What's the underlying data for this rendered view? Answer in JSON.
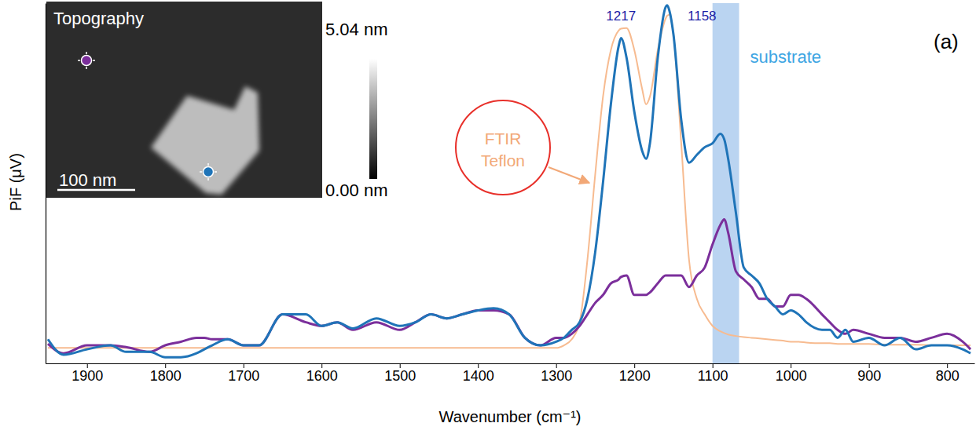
{
  "chart_data": {
    "type": "line",
    "x": [
      1950,
      1930,
      1900,
      1870,
      1850,
      1820,
      1800,
      1780,
      1760,
      1750,
      1740,
      1720,
      1700,
      1680,
      1650,
      1620,
      1600,
      1580,
      1560,
      1530,
      1500,
      1480,
      1460,
      1440,
      1420,
      1400,
      1380,
      1360,
      1340,
      1320,
      1300,
      1290,
      1280,
      1270,
      1260,
      1250,
      1240,
      1230,
      1220,
      1217,
      1210,
      1200,
      1190,
      1185,
      1180,
      1170,
      1160,
      1158,
      1155,
      1150,
      1140,
      1130,
      1120,
      1110,
      1100,
      1090,
      1085,
      1080,
      1070,
      1060,
      1050,
      1040,
      1030,
      1020,
      1010,
      1000,
      990,
      980,
      960,
      950,
      940,
      930,
      920,
      900,
      880,
      860,
      840,
      820,
      800,
      780,
      770
    ],
    "xlim": [
      1953,
      765
    ],
    "xticks": [
      1900,
      1800,
      1700,
      1600,
      1500,
      1400,
      1300,
      1200,
      1100,
      1000,
      900,
      800
    ],
    "ylim": [
      0,
      100
    ],
    "tick_labels": "x",
    "x_label": "Wavenumber (cm⁻¹)",
    "y_label": "PiF (μV)",
    "panel": "(a)",
    "series": [
      {
        "color": "#f7bb90",
        "line_style": "solid",
        "values": [
          4.3,
          4.3,
          4.3,
          4.3,
          4.3,
          4.3,
          4.3,
          4.3,
          4.3,
          4.3,
          4.3,
          4.3,
          4.3,
          4.3,
          4.3,
          4.3,
          4.3,
          4.3,
          4.3,
          4.3,
          4.3,
          4.3,
          4.3,
          4.3,
          4.3,
          4.3,
          4.3,
          4.3,
          4.3,
          4.3,
          4.3,
          5.0,
          6.7,
          11.4,
          28.7,
          52.5,
          74.1,
          87.0,
          92.4,
          92.9,
          93.1,
          87.0,
          76.2,
          71.9,
          74.1,
          87.0,
          95.7,
          96.5,
          96.8,
          91.4,
          61.1,
          28.7,
          17.9,
          13.6,
          10.4,
          8.9,
          8.4,
          8.0,
          7.6,
          7.3,
          7.1,
          6.9,
          6.7,
          6.5,
          6.3,
          6.0,
          6.0,
          5.8,
          5.6,
          5.6,
          5.4,
          5.4,
          5.4,
          5.4,
          5.2,
          5.2,
          5.2,
          5.0,
          5.0,
          5.0,
          5.0
        ]
      },
      {
        "color": "#7b2f9b",
        "line_style": "solid",
        "values": [
          5.4,
          2.8,
          5.0,
          5.0,
          4.5,
          3.2,
          5.0,
          6.0,
          7.1,
          7.1,
          6.7,
          6.7,
          5.0,
          5.0,
          13.6,
          11.4,
          10.4,
          11.4,
          9.3,
          11.4,
          9.3,
          11.4,
          13.6,
          12.5,
          13.6,
          14.7,
          14.7,
          13.6,
          7.1,
          5.0,
          7.1,
          7.1,
          8.2,
          10.4,
          13.6,
          16.8,
          19.0,
          22.2,
          23.3,
          24.0,
          24.4,
          19.0,
          19.0,
          19.0,
          19.7,
          22.2,
          24.4,
          24.4,
          24.4,
          24.4,
          24.4,
          21.2,
          24.4,
          26.6,
          33.0,
          38.4,
          40.0,
          36.3,
          25.5,
          23.3,
          21.2,
          17.9,
          17.9,
          15.8,
          15.8,
          19.0,
          19.0,
          17.9,
          13.6,
          11.4,
          9.3,
          8.2,
          9.3,
          8.2,
          7.1,
          7.1,
          6.0,
          7.1,
          8.2,
          6.0,
          3.9
        ]
      },
      {
        "color": "#1f74b8",
        "line_style": "solid",
        "values": [
          6.7,
          2.4,
          3.9,
          5.0,
          3.2,
          3.2,
          1.7,
          1.7,
          2.8,
          3.9,
          5.0,
          6.7,
          5.0,
          5.0,
          13.6,
          13.6,
          10.4,
          11.4,
          9.7,
          12.5,
          10.4,
          11.4,
          13.6,
          12.5,
          13.6,
          14.7,
          15.3,
          13.6,
          7.1,
          5.0,
          6.0,
          7.1,
          9.3,
          11.4,
          17.9,
          30.9,
          50.3,
          71.9,
          88.1,
          90.3,
          84.9,
          69.8,
          59.0,
          56.8,
          61.1,
          84.9,
          98.9,
          99.4,
          97.8,
          91.4,
          67.6,
          55.7,
          57.9,
          60.0,
          61.1,
          63.7,
          62.2,
          56.8,
          41.7,
          26.6,
          24.4,
          22.2,
          17.9,
          15.8,
          13.6,
          14.7,
          13.6,
          11.4,
          9.3,
          9.3,
          7.1,
          9.3,
          6.0,
          7.1,
          5.0,
          7.1,
          3.9,
          5.0,
          5.0,
          3.9,
          2.8
        ]
      }
    ],
    "annotations": [
      {
        "text": "1217",
        "x": 1217
      },
      {
        "text": "1158",
        "x": 1158
      },
      {
        "text": "FTIR Teflon"
      }
    ],
    "bands": [
      {
        "label": "substrate",
        "range": [
          1100,
          1066
        ],
        "color": "#a9c9ee"
      }
    ],
    "inset": {
      "title": "Topography",
      "scale_bar": "100 nm",
      "colorbar": {
        "range": [
          0,
          5.04
        ],
        "ticks": [
          {
            "value": 5.04,
            "label": "5.04 nm"
          },
          {
            "value": 0,
            "label": "0.00 nm"
          }
        ]
      }
    }
  }
}
